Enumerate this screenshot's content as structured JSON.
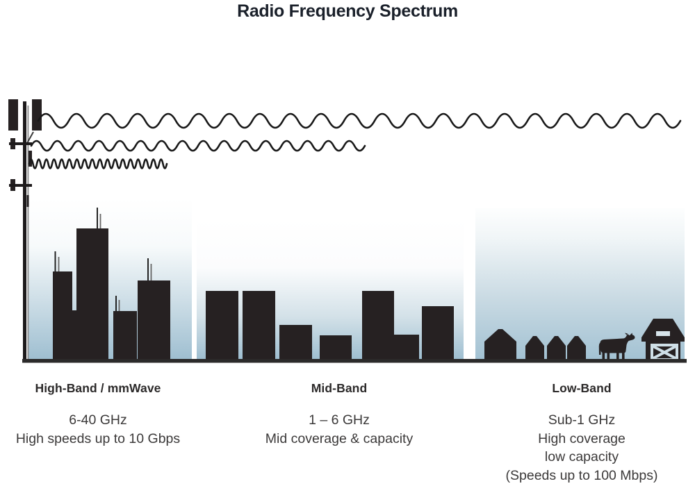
{
  "title": "Radio Frequency Spectrum",
  "bands": [
    {
      "id": "high-band",
      "heading": "High-Band / mmWave",
      "lines": [
        "6-40 GHz",
        "High speeds up to 10 Gbps"
      ],
      "scene": "city-skyline-with-antennas"
    },
    {
      "id": "mid-band",
      "heading": "Mid-Band",
      "lines": [
        "1 – 6 GHz",
        "Mid coverage & capacity"
      ],
      "scene": "mid-rise-buildings"
    },
    {
      "id": "low-band",
      "heading": "Low-Band",
      "lines": [
        "Sub-1 GHz",
        "High coverage",
        "low capacity",
        "(Speeds up to 100 Mbps)"
      ],
      "scene": "houses-cow-and-barn"
    }
  ],
  "scene_icons": {
    "tower": "cell-tower-icon",
    "waves": [
      "long-wavelength-wave",
      "medium-wavelength-wave",
      "short-wavelength-wave"
    ]
  },
  "colors": {
    "silhouette": "#262122",
    "wave_stroke": "#181818",
    "sky_bottom": "#9fbfd1",
    "ink_title": "#1a202a",
    "ink_body": "#3b3939",
    "ground": "#2b2a2a",
    "barn_door_trim": "#cfdfe7"
  }
}
